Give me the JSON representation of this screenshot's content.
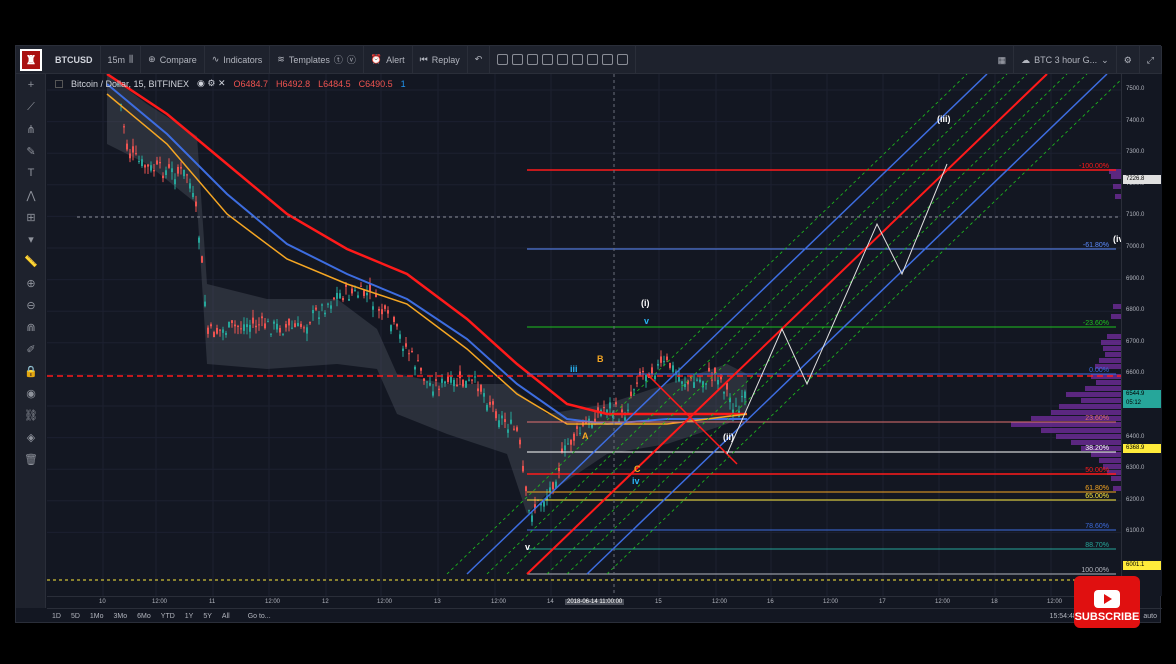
{
  "toolbar": {
    "symbol": "BTCUSD",
    "interval": "15m",
    "compare": "Compare",
    "indicators": "Indicators",
    "templates": "Templates",
    "alert": "Alert",
    "replay": "Replay",
    "layout_name": "BTC 3 hour G..."
  },
  "legend": {
    "title": "Bitcoin / Dollar, 15, BITFINEX",
    "open": "O6484.7",
    "high": "H6492.8",
    "low": "L6484.5",
    "close": "C6490.5",
    "extra": "1"
  },
  "price_ticks": [
    "7500.0",
    "7400.0",
    "7300.0",
    "7200.0",
    "7100.0",
    "7000.0",
    "6900.0",
    "6800.0",
    "6700.0",
    "6600.0",
    "6500.0",
    "6400.0",
    "6300.0",
    "6200.0",
    "6100.0"
  ],
  "price_tags": {
    "top": "7226.8",
    "last": "6544.9",
    "time_left": "05:12",
    "yellow": "6368.9",
    "bottom": "6001.1"
  },
  "time_ticks": [
    "10",
    "12:00",
    "11",
    "12:00",
    "12",
    "12:00",
    "13",
    "12:00",
    "14",
    "15",
    "12:00",
    "16",
    "12:00",
    "17",
    "12:00",
    "18",
    "12:00"
  ],
  "time_cursor": "2018-06-14 11:00:00",
  "fib_labels": [
    "-100.00%",
    "-61.80%",
    "-23.60%",
    "0.00%",
    "23.60%",
    "38.20%",
    "50.00%",
    "61.80%",
    "65.00%",
    "78.60%",
    "88.70%",
    "100.00%"
  ],
  "wave_labels": {
    "iii_small": "iii",
    "B": "B",
    "A": "A",
    "C": "C",
    "iv": "iv",
    "v_low": "v",
    "i": "(i)",
    "v_top": "v",
    "ii": "(ii)",
    "iii": "(iii)",
    "iv_right": "(iv)"
  },
  "bottom": {
    "ranges": [
      "1D",
      "5D",
      "1Mo",
      "3Mo",
      "6Mo",
      "YTD",
      "1Y",
      "5Y",
      "All"
    ],
    "goto": "Go to...",
    "clock": "15:54:48 (UTC)",
    "pct": "%",
    "log": "log",
    "auto": "auto"
  },
  "subscribe": "SUBSCRIBE",
  "colors": {
    "bg": "#131722",
    "red": "#ff1a1a",
    "blue": "#3d6de0",
    "orange": "#f5a623",
    "green": "#1ec21e"
  }
}
